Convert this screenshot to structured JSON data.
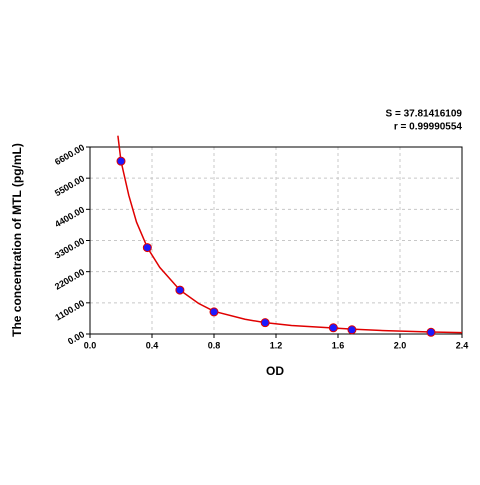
{
  "chart_data": {
    "type": "scatter",
    "annotations": [
      "S = 37.81416109",
      "r = 0.99990554"
    ],
    "xlabel": "OD",
    "ylabel": "The concentration of  MTL  (pg/mL)",
    "xlim": [
      0,
      2.4
    ],
    "ylim": [
      0,
      6600
    ],
    "xticks": [
      {
        "value": 0,
        "label": "0.0"
      },
      0.4,
      0.8,
      1.2,
      1.6,
      {
        "value": 2,
        "label": "2.0"
      },
      2.4
    ],
    "yticks": [
      {
        "value": 0,
        "label": "0.00"
      },
      {
        "value": 1100,
        "label": "1100.00"
      },
      {
        "value": 2200,
        "label": "2200.00"
      },
      {
        "value": 3300,
        "label": "3300.00"
      },
      {
        "value": 4400,
        "label": "4400.00"
      },
      {
        "value": 5500,
        "label": "5500.00"
      },
      {
        "value": 6600,
        "label": "6600.00"
      }
    ],
    "grid": true,
    "series": [
      {
        "type": "scatter",
        "color": "#1a1aff",
        "edge_color": "#e00000",
        "x": [
          0.2,
          0.37,
          0.58,
          0.8,
          1.13,
          1.57,
          1.69,
          2.2
        ],
        "values": [
          6100,
          3050,
          1550,
          780,
          400,
          220,
          150,
          60
        ]
      },
      {
        "type": "line",
        "color": "#e00000",
        "x": [
          0.18,
          0.2,
          0.25,
          0.3,
          0.37,
          0.45,
          0.58,
          0.7,
          0.8,
          1.0,
          1.13,
          1.3,
          1.57,
          1.69,
          1.9,
          2.2,
          2.4
        ],
        "values": [
          7000,
          6100,
          4900,
          3950,
          3050,
          2350,
          1550,
          1080,
          800,
          520,
          400,
          300,
          210,
          170,
          120,
          70,
          50
        ]
      }
    ]
  }
}
